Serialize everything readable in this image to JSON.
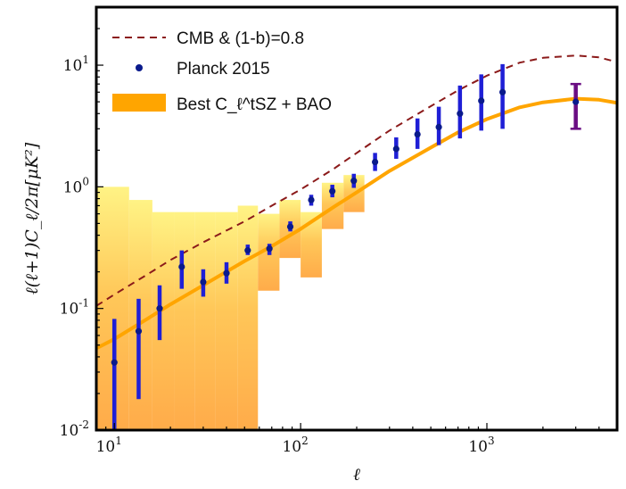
{
  "chart_data": {
    "type": "scatter",
    "xscale": "log",
    "yscale": "log",
    "xlim": [
      8,
      5000
    ],
    "ylim": [
      0.01,
      30
    ],
    "grid": false,
    "legend_position": "top-left",
    "xlabel": "ℓ",
    "ylabel": "ℓ(ℓ+1)C_ℓ/2π[μK²]",
    "x_ticks": [
      {
        "value": 10,
        "base": "10",
        "exp": "1"
      },
      {
        "value": 100,
        "base": "10",
        "exp": "2"
      },
      {
        "value": 1000,
        "base": "10",
        "exp": "3"
      }
    ],
    "y_ticks": [
      {
        "value": 0.01,
        "base": "10",
        "exp": "-2"
      },
      {
        "value": 0.1,
        "base": "10",
        "exp": "-1"
      },
      {
        "value": 1,
        "base": "10",
        "exp": "0"
      },
      {
        "value": 10,
        "base": "10",
        "exp": "1"
      }
    ],
    "legend": [
      {
        "label": "CMB & (1-b)=0.8",
        "kind": "dashed-line",
        "color": "#8b1a1a"
      },
      {
        "label": "Planck 2015",
        "kind": "marker",
        "color": "#1f1fd6"
      },
      {
        "label": "Best C_ℓ^tSZ + BAO",
        "kind": "patch",
        "color": "#ffa500"
      }
    ],
    "series": [
      {
        "name": "CMB & (1-b)=0.8",
        "style": "dashed",
        "color": "#8b1a1a",
        "x": [
          8,
          10,
          15,
          20,
          30,
          50,
          70,
          100,
          150,
          200,
          300,
          500,
          700,
          1000,
          1500,
          2000,
          3000,
          4000,
          5000
        ],
        "y": [
          0.105,
          0.13,
          0.19,
          0.25,
          0.35,
          0.52,
          0.7,
          0.95,
          1.4,
          1.9,
          2.9,
          4.6,
          6.2,
          8.2,
          10.5,
          11.5,
          12.0,
          11.6,
          10.6
        ]
      },
      {
        "name": "Best C_ℓ^tSZ + BAO",
        "style": "solid",
        "color": "#ffa500",
        "x": [
          8,
          10,
          15,
          20,
          30,
          50,
          70,
          100,
          150,
          200,
          300,
          500,
          700,
          1000,
          1500,
          2000,
          3000,
          4000,
          5000
        ],
        "y": [
          0.047,
          0.056,
          0.082,
          0.108,
          0.155,
          0.245,
          0.325,
          0.45,
          0.68,
          0.9,
          1.35,
          2.1,
          2.8,
          3.6,
          4.5,
          4.95,
          5.3,
          5.2,
          4.9
        ]
      },
      {
        "name": "Planck 2015",
        "color": "#1f1fd6",
        "x": [
          10,
          13.5,
          17.5,
          23,
          30,
          40,
          52,
          68,
          88,
          114,
          148,
          193,
          251,
          326,
          424,
          552,
          717,
          933,
          1214
        ],
        "y": [
          0.036,
          0.065,
          0.1,
          0.22,
          0.165,
          0.195,
          0.3,
          0.31,
          0.47,
          0.78,
          0.92,
          1.12,
          1.6,
          2.05,
          2.7,
          3.1,
          4.0,
          5.1,
          6.0
        ],
        "err_lo": [
          0.008,
          0.018,
          0.055,
          0.145,
          0.125,
          0.16,
          0.275,
          0.275,
          0.43,
          0.7,
          0.82,
          0.98,
          1.35,
          1.7,
          2.05,
          2.2,
          2.5,
          2.9,
          3.0
        ],
        "err_hi": [
          0.082,
          0.12,
          0.155,
          0.3,
          0.21,
          0.24,
          0.335,
          0.34,
          0.52,
          0.86,
          1.04,
          1.28,
          1.9,
          2.55,
          3.65,
          4.55,
          6.8,
          8.4,
          10.2
        ]
      },
      {
        "name": "high-ℓ point",
        "color": "#6a0d83",
        "x": [
          3000
        ],
        "y": [
          5.0
        ],
        "err_lo": [
          3.0
        ],
        "err_hi": [
          7.0
        ]
      }
    ],
    "bands": [
      {
        "x0": 8,
        "x1": 12,
        "lo": 0.01,
        "hi": 1.0
      },
      {
        "x0": 12,
        "x1": 16,
        "lo": 0.01,
        "hi": 0.78
      },
      {
        "x0": 16,
        "x1": 21,
        "lo": 0.01,
        "hi": 0.62
      },
      {
        "x0": 21,
        "x1": 27,
        "lo": 0.01,
        "hi": 0.62
      },
      {
        "x0": 27,
        "x1": 35,
        "lo": 0.01,
        "hi": 0.62
      },
      {
        "x0": 35,
        "x1": 46,
        "lo": 0.01,
        "hi": 0.62
      },
      {
        "x0": 46,
        "x1": 59,
        "lo": 0.01,
        "hi": 0.7
      },
      {
        "x0": 59,
        "x1": 77,
        "lo": 0.14,
        "hi": 0.6
      },
      {
        "x0": 77,
        "x1": 100,
        "lo": 0.26,
        "hi": 0.78
      },
      {
        "x0": 100,
        "x1": 130,
        "lo": 0.18,
        "hi": 0.62
      },
      {
        "x0": 130,
        "x1": 170,
        "lo": 0.45,
        "hi": 1.08
      },
      {
        "x0": 170,
        "x1": 220,
        "lo": 0.62,
        "hi": 1.25
      }
    ]
  }
}
